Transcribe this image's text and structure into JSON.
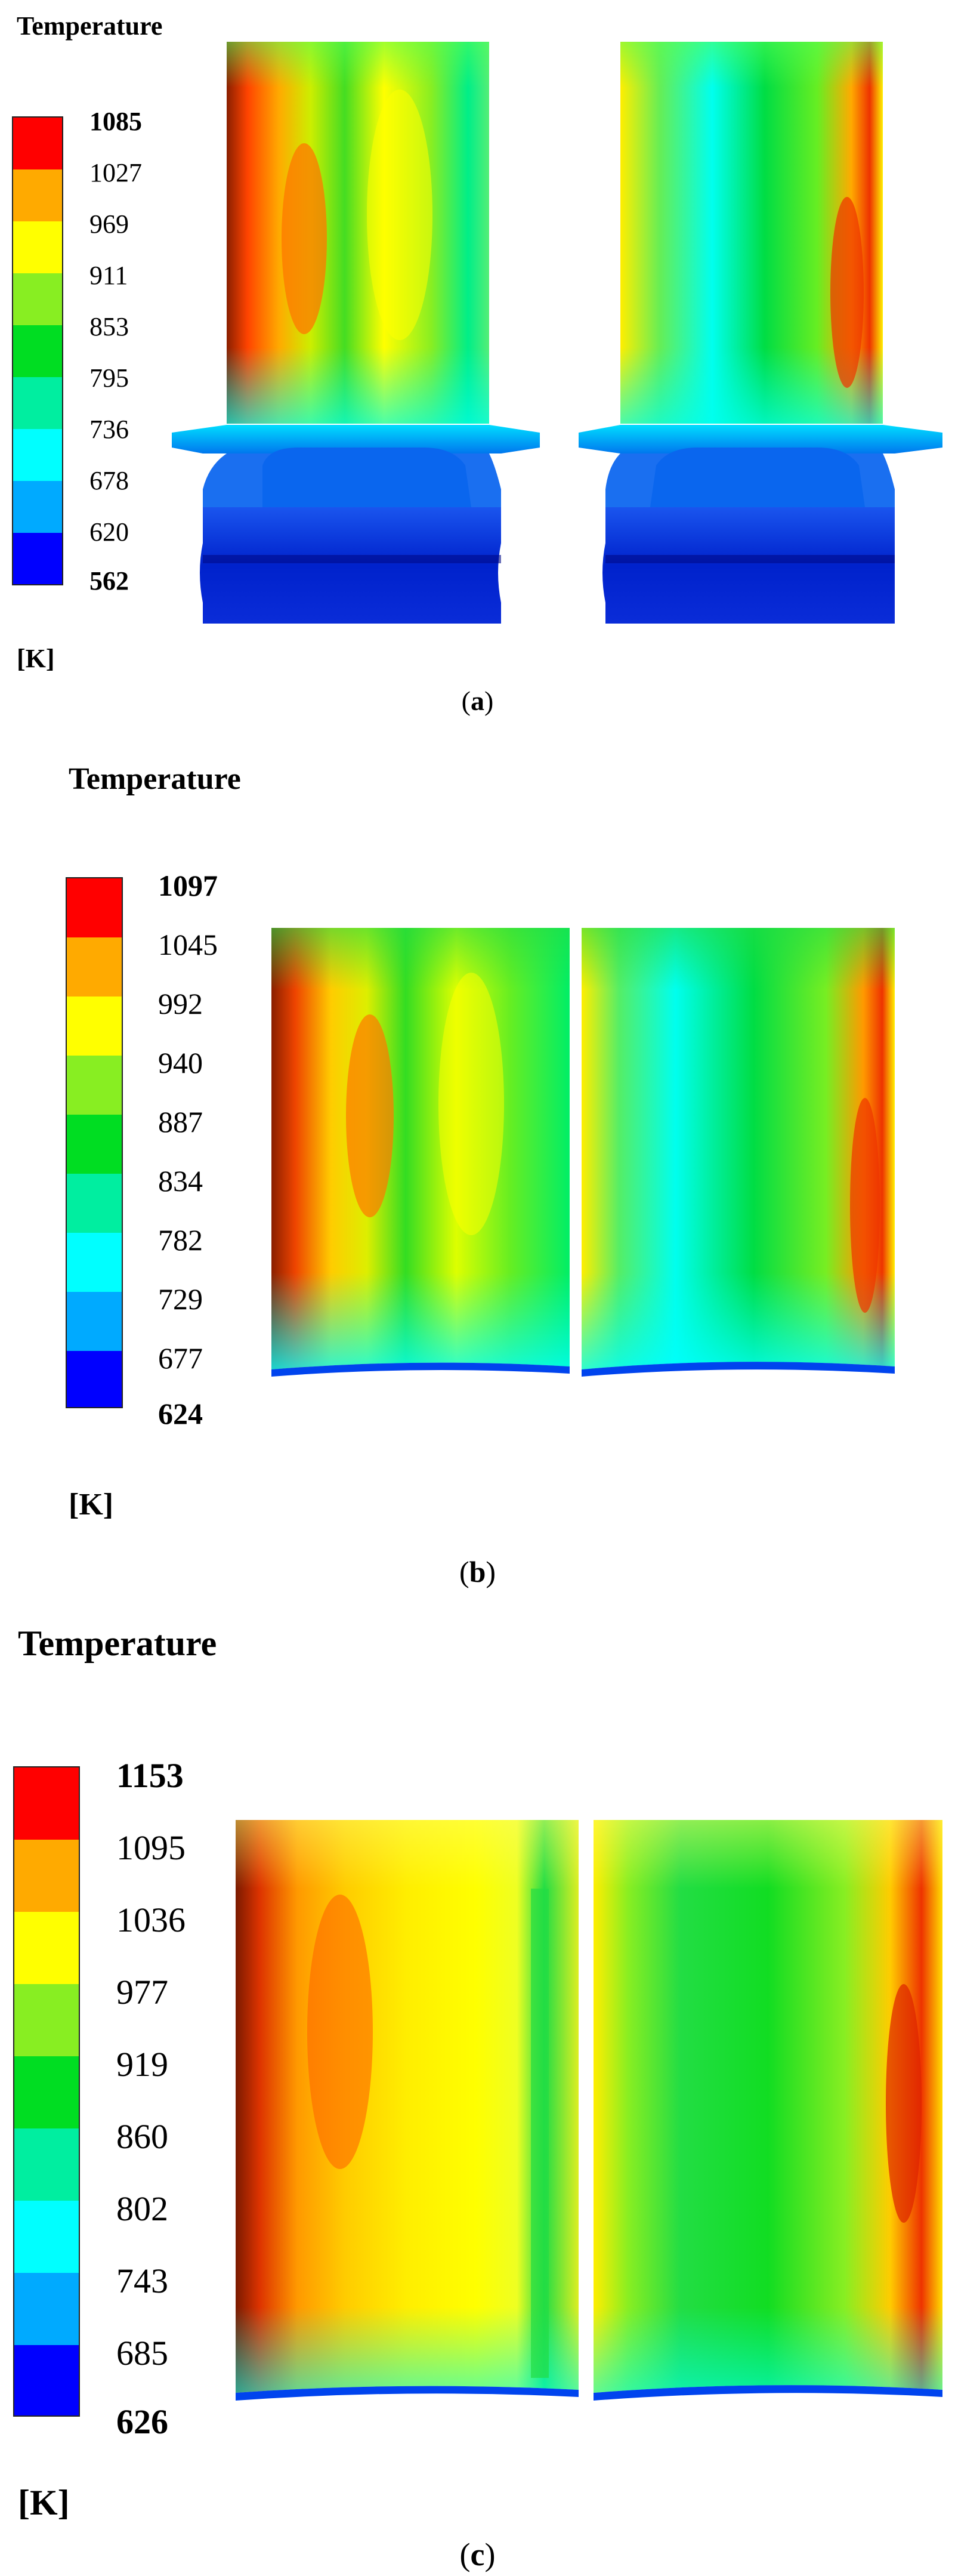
{
  "panels": [
    {
      "legend_title": "Temperature",
      "unit": "[K]",
      "caption_open": "(",
      "caption_letter": "a",
      "caption_close": ")",
      "ticks": [
        "1085",
        "1027",
        "969",
        "911",
        "853",
        "795",
        "736",
        "678",
        "620",
        "562"
      ]
    },
    {
      "legend_title": "Temperature",
      "unit": "[K]",
      "caption_open": "(",
      "caption_letter": "b",
      "caption_close": ")",
      "ticks": [
        "1097",
        "1045",
        "992",
        "940",
        "887",
        "834",
        "782",
        "729",
        "677",
        "624"
      ]
    },
    {
      "legend_title": "Temperature",
      "unit": "[K]",
      "caption_open": "(",
      "caption_letter": "c",
      "caption_close": ")",
      "ticks": [
        "1153",
        "1095",
        "1036",
        "977",
        "919",
        "860",
        "802",
        "743",
        "685",
        "626"
      ]
    }
  ],
  "colors": {
    "scale": [
      "#ff0000",
      "#ffaa00",
      "#ffff00",
      "#88ee22",
      "#00dd22",
      "#00eea0",
      "#00ffff",
      "#00aaff",
      "#0000ff"
    ],
    "blade_dark": "#8a1f00",
    "platform": "#1a5fe8",
    "root": "#0a2cd8"
  }
}
